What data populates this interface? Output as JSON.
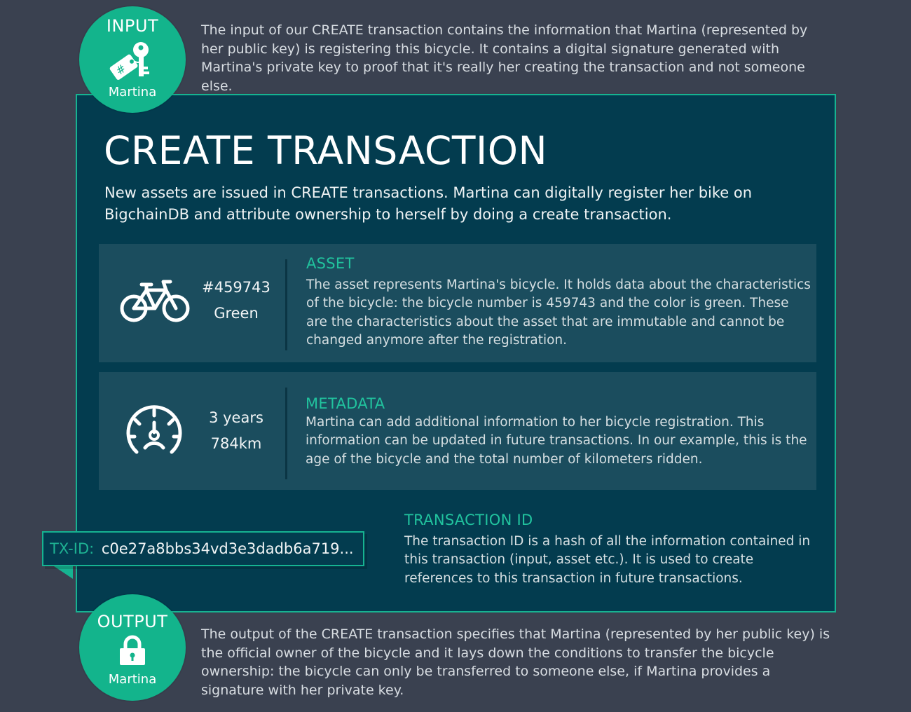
{
  "input": {
    "title": "INPUT",
    "name": "Martina",
    "key_tag_symbol": "#",
    "description": "The input of our CREATE transaction contains the information that Martina (represented by her public key) is registering this bicycle. It contains a digital signature generated with Martina's private key to proof that it's really her creating the transaction and not someone else."
  },
  "panel": {
    "title": "CREATE TRANSACTION",
    "subtitle": "New assets are issued in CREATE transactions. Martina can digitally register her bike on BigchainDB and attribute ownership to herself by doing a create transaction."
  },
  "asset": {
    "icon": "bicycle-icon",
    "value1": "#459743",
    "value2": "Green",
    "heading": "ASSET",
    "text": "The asset represents Martina's bicycle. It holds data about the characteristics of the bicycle: the bicycle number is 459743 and the color is green. These are the characteristics about the asset that are immutable and cannot be changed anymore after the registration."
  },
  "metadata": {
    "icon": "speedometer-icon",
    "value1": "3 years",
    "value2": "784km",
    "heading": "METADATA",
    "text": "Martina can add additional information to her bicycle registration. This information can be updated in future transactions. In our example, this is the age of the bicycle and the total number of kilometers ridden."
  },
  "transaction_id": {
    "label": "TX-ID:",
    "value": "c0e27a8bbs34vd3e3dadb6a719...",
    "heading": "TRANSACTION ID",
    "text": "The transaction ID is a hash of all the information contained in this transaction (input, asset etc.). It is used to create references to this transaction in future transactions."
  },
  "output": {
    "title": "OUTPUT",
    "name": "Martina",
    "icon": "lock-icon",
    "description": "The output of the CREATE transaction specifies that Martina (represented by her public key) is the official owner of the bicycle and it lays down the conditions to transfer the bicycle ownership: the bicycle can only be transferred to someone else, if Martina provides a signature with her private key."
  },
  "colors": {
    "background": "#3a4150",
    "panel": "#033c4f",
    "card": "#1b4d5e",
    "accent": "#13b48c"
  }
}
